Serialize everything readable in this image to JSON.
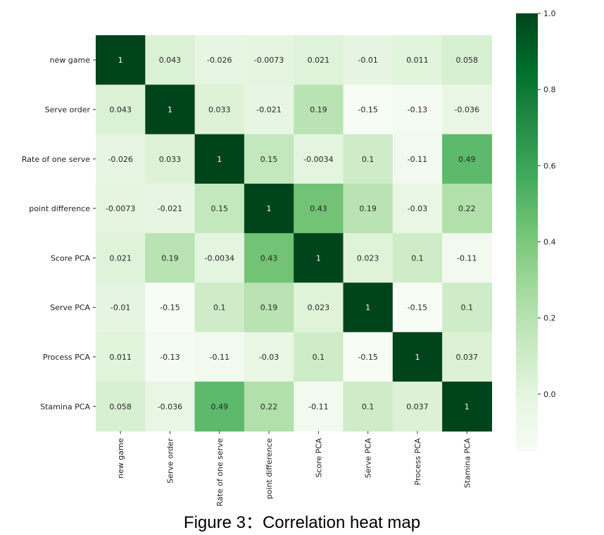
{
  "caption": "Figure 3：Correlation heat map",
  "chart_data": {
    "type": "heatmap",
    "title": "",
    "variables": [
      "new game",
      "Serve order",
      "Rate of one serve",
      "point difference",
      "Score PCA",
      "Serve PCA",
      "Process PCA",
      "Stamina PCA"
    ],
    "values": [
      [
        1,
        0.043,
        -0.026,
        -0.0073,
        0.021,
        -0.01,
        0.011,
        0.058
      ],
      [
        0.043,
        1,
        0.033,
        -0.021,
        0.19,
        -0.15,
        -0.13,
        -0.036
      ],
      [
        -0.026,
        0.033,
        1,
        0.15,
        -0.0034,
        0.1,
        -0.11,
        0.49
      ],
      [
        -0.0073,
        -0.021,
        0.15,
        1,
        0.43,
        0.19,
        -0.03,
        0.22
      ],
      [
        0.021,
        0.19,
        -0.0034,
        0.43,
        1,
        0.023,
        0.1,
        -0.11
      ],
      [
        -0.01,
        -0.15,
        0.1,
        0.19,
        0.023,
        1,
        -0.15,
        0.1
      ],
      [
        0.011,
        -0.13,
        -0.11,
        -0.03,
        0.1,
        -0.15,
        1,
        0.037
      ],
      [
        0.058,
        -0.036,
        0.49,
        0.22,
        -0.11,
        0.1,
        0.037,
        1
      ]
    ],
    "colormap": "Greens",
    "color_range": [
      -0.15,
      1.0
    ],
    "colorbar_ticks": [
      1.0,
      0.8,
      0.6,
      0.4,
      0.2,
      0.0
    ],
    "colorbar_tick_labels": [
      "1.0",
      "0.8",
      "0.6",
      "0.4",
      "0.2",
      "0.0"
    ],
    "colorbar_placement": "right"
  }
}
